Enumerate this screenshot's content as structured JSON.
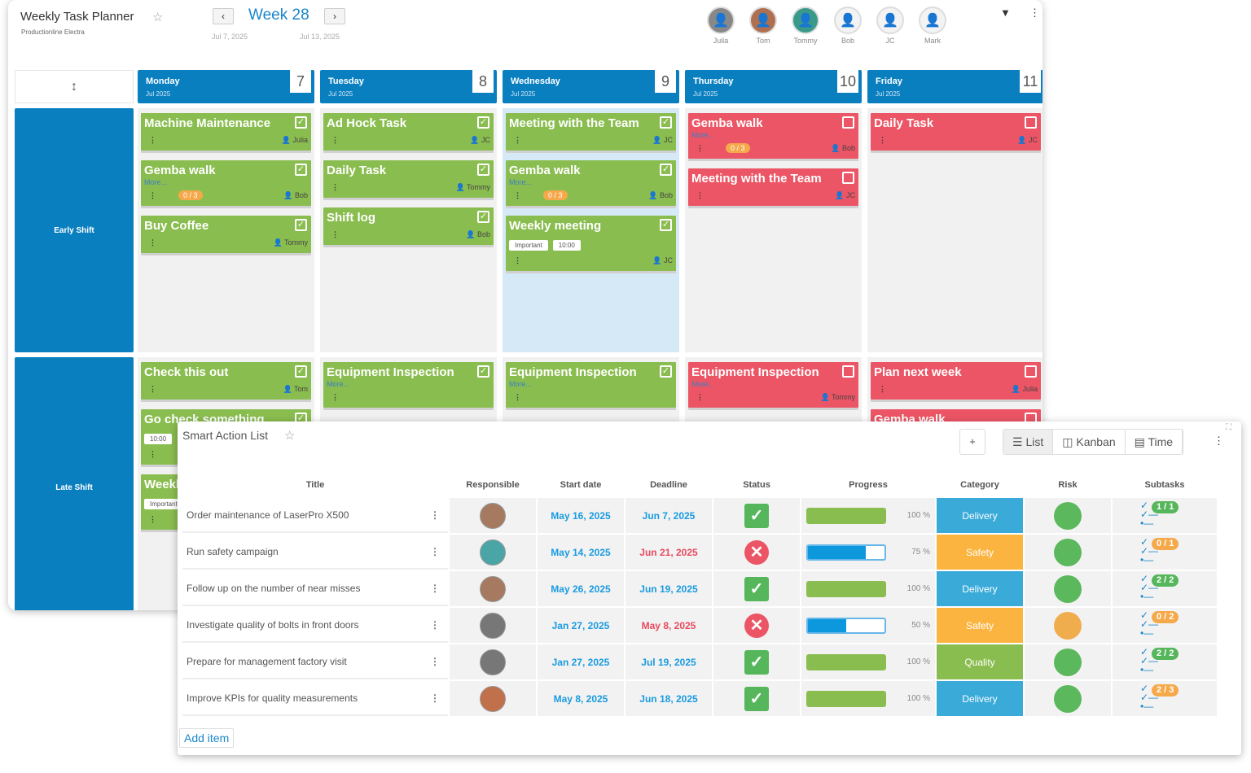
{
  "planner": {
    "title": "Weekly Task Planner",
    "subtitle": "Productionline Electra",
    "week": "Week 28",
    "prev": "‹",
    "next": "›",
    "start": "Jul 7, 2025",
    "end": "Jul 13, 2025",
    "people": [
      "Julia",
      "Tom",
      "Tommy",
      "Bob",
      "JC",
      "Mark"
    ],
    "filter_icon": "▼",
    "menu_icon": "⋮",
    "corner_icon": "↕",
    "days": [
      {
        "name": "Monday",
        "month": "Jul 2025",
        "num": "7"
      },
      {
        "name": "Tuesday",
        "month": "Jul 2025",
        "num": "8"
      },
      {
        "name": "Wednesday",
        "month": "Jul 2025",
        "num": "9"
      },
      {
        "name": "Thursday",
        "month": "Jul 2025",
        "num": "10"
      },
      {
        "name": "Friday",
        "month": "Jul 2025",
        "num": "11"
      }
    ],
    "shifts": [
      {
        "name": "Early Shift",
        "cells": [
          [
            {
              "t": "Machine Maintenance",
              "c": "green",
              "done": true,
              "who": "Julia"
            },
            {
              "t": "Gemba walk",
              "c": "green",
              "done": true,
              "more": "More...",
              "badge": "0 / 3",
              "who": "Bob"
            },
            {
              "t": "Buy Coffee",
              "c": "green",
              "done": true,
              "who": "Tommy"
            }
          ],
          [
            {
              "t": "Ad Hock Task",
              "c": "green",
              "done": true,
              "who": "JC"
            },
            {
              "t": "Daily Task",
              "c": "green",
              "done": true,
              "who": "Tommy"
            },
            {
              "t": "Shift log",
              "c": "green",
              "done": true,
              "who": "Bob"
            }
          ],
          [
            {
              "t": "Meeting with the Team",
              "c": "green",
              "done": true,
              "who": "JC"
            },
            {
              "t": "Gemba walk",
              "c": "green",
              "done": true,
              "more": "More...",
              "badge": "0 / 3",
              "who": "Bob"
            },
            {
              "t": "Weekly meeting",
              "c": "green",
              "done": true,
              "tags": [
                "Important",
                "10:00"
              ],
              "who": "JC"
            }
          ],
          [
            {
              "t": "Gemba walk",
              "c": "red",
              "done": false,
              "more": "More...",
              "badge": "0 / 3",
              "who": "Bob"
            },
            {
              "t": "Meeting with the Team",
              "c": "red",
              "done": false,
              "who": "JC"
            }
          ],
          [
            {
              "t": "Daily Task",
              "c": "red",
              "done": false,
              "who": "JC"
            }
          ]
        ]
      },
      {
        "name": "Late Shift",
        "cells": [
          [
            {
              "t": "Check this out",
              "c": "green",
              "done": true,
              "who": "Tom"
            },
            {
              "t": "Go check something",
              "c": "green",
              "done": true,
              "tags": [
                "10:00"
              ]
            },
            {
              "t": "Weekly meeting",
              "c": "green",
              "done": true,
              "tags": [
                "Important"
              ]
            }
          ],
          [
            {
              "t": "Equipment Inspection",
              "c": "green",
              "done": true,
              "more": "More..."
            }
          ],
          [
            {
              "t": "Equipment Inspection",
              "c": "green",
              "done": true,
              "more": "More..."
            }
          ],
          [
            {
              "t": "Equipment Inspection",
              "c": "red",
              "done": false,
              "more": "More...",
              "who": "Tommy"
            }
          ],
          [
            {
              "t": "Plan next week",
              "c": "red",
              "done": false,
              "who": "Julia"
            },
            {
              "t": "Gemba walk",
              "c": "red",
              "done": false
            }
          ]
        ]
      }
    ]
  },
  "action_list": {
    "title": "Smart Action List",
    "add_label": "+",
    "views": [
      "☰ List",
      "◫ Kanban",
      "▤ Time"
    ],
    "active_view": "☰ List",
    "menu_icon": "⋮",
    "expand_icon": "⛶",
    "columns": [
      "Title",
      "Responsible",
      "Start date",
      "Deadline",
      "Status",
      "Progress",
      "Category",
      "Risk",
      "Subtasks"
    ],
    "rows": [
      {
        "title": "Order maintenance of LaserPro X500",
        "start": "May 16, 2025",
        "deadline": "Jun 7, 2025",
        "deadline_late": false,
        "status": "done",
        "progress": 100,
        "progress_label": "100 %",
        "category": "Delivery",
        "risk": "green",
        "subtasks": "1 / 1",
        "sub_color": "#56b65b",
        "avatar": "#a57a60"
      },
      {
        "title": "Run safety campaign",
        "start": "May 14, 2025",
        "deadline": "Jun 21, 2025",
        "deadline_late": true,
        "status": "failed",
        "progress": 75,
        "progress_label": "75 %",
        "category": "Safety",
        "risk": "green",
        "subtasks": "0 / 1",
        "sub_color": "#f6a94a",
        "avatar": "#4aa6a6"
      },
      {
        "title": "Follow up on the number of near misses",
        "start": "May 26, 2025",
        "deadline": "Jun 19, 2025",
        "deadline_late": false,
        "status": "done",
        "progress": 100,
        "progress_label": "100 %",
        "category": "Delivery",
        "risk": "green",
        "subtasks": "2 / 2",
        "sub_color": "#56b65b",
        "avatar": "#a57a60"
      },
      {
        "title": "Investigate quality of bolts in front doors",
        "start": "Jan 27, 2025",
        "deadline": "May 8, 2025",
        "deadline_late": true,
        "status": "failed",
        "progress": 50,
        "progress_label": "50 %",
        "category": "Safety",
        "risk": "orange",
        "subtasks": "0 / 2",
        "sub_color": "#f6a94a",
        "avatar": "#777"
      },
      {
        "title": "Prepare for management factory visit",
        "start": "Jan 27, 2025",
        "deadline": "Jul 19, 2025",
        "deadline_late": false,
        "status": "done",
        "progress": 100,
        "progress_label": "100 %",
        "category": "Quality",
        "risk": "green",
        "subtasks": "2 / 2",
        "sub_color": "#56b65b",
        "avatar": "#777"
      },
      {
        "title": "Improve KPIs for quality measurements",
        "start": "May 8, 2025",
        "deadline": "Jun 18, 2025",
        "deadline_late": false,
        "status": "done",
        "progress": 100,
        "progress_label": "100 %",
        "category": "Delivery",
        "risk": "green",
        "subtasks": "2 / 3",
        "sub_color": "#f6a94a",
        "avatar": "#c0704a"
      }
    ],
    "add_item": "Add item",
    "colors": {
      "Delivery": "#3aaad9",
      "Safety": "#fbb440",
      "Quality": "#8abd4f",
      "green": "#5cb85c",
      "orange": "#f0ad4e"
    }
  }
}
